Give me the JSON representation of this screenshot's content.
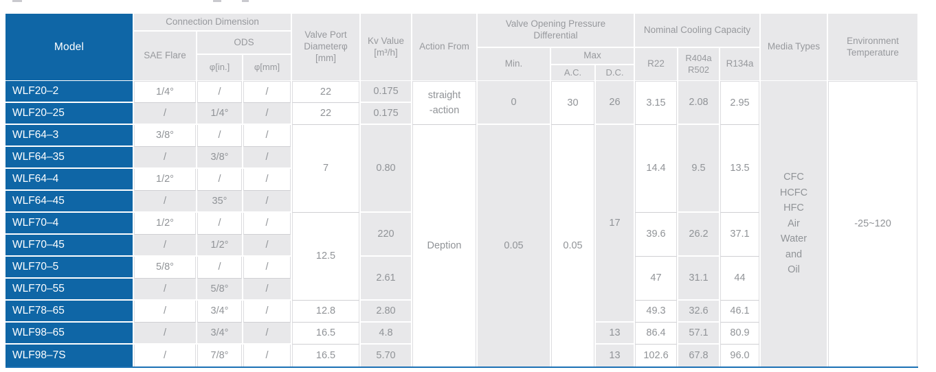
{
  "colors": {
    "model_blue": "#0f66a6",
    "cell_gray": "#e8e8ea",
    "header_text_gray": "#97999d",
    "body_text_gray": "#909397",
    "bottom_rule_blue": "#1a70b4"
  },
  "table": {
    "header": {
      "model": "Model",
      "connection_dimension": "Connection Dimension",
      "sae_flare": "SAE Flare",
      "ods": "ODS",
      "phi_in": "φ[in.]",
      "phi_mm": "φ[mm]",
      "valve_port": "Valve Port\nDiameterφ\n[mm]",
      "kv_value": "Kv Value\n[m³/h]",
      "action_from": "Action From",
      "pressure_differential": "Valve Opening Pressure\nDifferential",
      "min": "Min.",
      "max": "Max",
      "ac": "A.C.",
      "dc": "D.C.",
      "cooling_capacity": "Nominal Cooling Capacity",
      "r22": "R22",
      "r404a_r502": "R404a\nR502",
      "r134a": "R134a",
      "media_types": "Media Types",
      "environment_temperature": "Environment\nTemperature"
    },
    "models": [
      "WLF20–2",
      "WLF20–25",
      "WLF64–3",
      "WLF64–35",
      "WLF64–4",
      "WLF64–45",
      "WLF70–4",
      "WLF70–45",
      "WLF70–5",
      "WLF70–55",
      "WLF78–65",
      "WLF98–65",
      "WLF98–7S"
    ],
    "body_cells": [
      {
        "c": 2,
        "r": 1,
        "t": "1/4°",
        "s": "w"
      },
      {
        "c": 2,
        "r": 2,
        "t": "/",
        "s": "g"
      },
      {
        "c": 2,
        "r": 3,
        "t": "3/8°",
        "s": "w"
      },
      {
        "c": 2,
        "r": 4,
        "t": "/",
        "s": "g"
      },
      {
        "c": 2,
        "r": 5,
        "t": "1/2°",
        "s": "w"
      },
      {
        "c": 2,
        "r": 6,
        "t": "/",
        "s": "g"
      },
      {
        "c": 2,
        "r": 7,
        "t": "1/2°",
        "s": "w"
      },
      {
        "c": 2,
        "r": 8,
        "t": "/",
        "s": "g"
      },
      {
        "c": 2,
        "r": 9,
        "t": "5/8°",
        "s": "w"
      },
      {
        "c": 2,
        "r": 10,
        "t": "/",
        "s": "g"
      },
      {
        "c": 2,
        "r": 11,
        "t": "/",
        "s": "w"
      },
      {
        "c": 2,
        "r": 12,
        "t": "/",
        "s": "g"
      },
      {
        "c": 2,
        "r": 13,
        "t": "/",
        "s": "w"
      },
      {
        "c": 3,
        "r": 1,
        "t": "/",
        "s": "w"
      },
      {
        "c": 3,
        "r": 2,
        "t": "1/4°",
        "s": "g"
      },
      {
        "c": 3,
        "r": 3,
        "t": "/",
        "s": "w"
      },
      {
        "c": 3,
        "r": 4,
        "t": "3/8°",
        "s": "g"
      },
      {
        "c": 3,
        "r": 5,
        "t": "/",
        "s": "w"
      },
      {
        "c": 3,
        "r": 6,
        "t": "35°",
        "s": "g"
      },
      {
        "c": 3,
        "r": 7,
        "t": "/",
        "s": "w"
      },
      {
        "c": 3,
        "r": 8,
        "t": "1/2°",
        "s": "g"
      },
      {
        "c": 3,
        "r": 9,
        "t": "/",
        "s": "w"
      },
      {
        "c": 3,
        "r": 10,
        "t": "5/8°",
        "s": "g"
      },
      {
        "c": 3,
        "r": 11,
        "t": "3/4°",
        "s": "w"
      },
      {
        "c": 3,
        "r": 12,
        "t": "3/4°",
        "s": "g"
      },
      {
        "c": 3,
        "r": 13,
        "t": "7/8°",
        "s": "w"
      },
      {
        "c": 4,
        "r": 1,
        "t": "/",
        "s": "w"
      },
      {
        "c": 4,
        "r": 2,
        "t": "/",
        "s": "g"
      },
      {
        "c": 4,
        "r": 3,
        "t": "/",
        "s": "w"
      },
      {
        "c": 4,
        "r": 4,
        "t": "/",
        "s": "g"
      },
      {
        "c": 4,
        "r": 5,
        "t": "/",
        "s": "w"
      },
      {
        "c": 4,
        "r": 6,
        "t": "/",
        "s": "g"
      },
      {
        "c": 4,
        "r": 7,
        "t": "/",
        "s": "w"
      },
      {
        "c": 4,
        "r": 8,
        "t": "/",
        "s": "g"
      },
      {
        "c": 4,
        "r": 9,
        "t": "/",
        "s": "w"
      },
      {
        "c": 4,
        "r": 10,
        "t": "/",
        "s": "g"
      },
      {
        "c": 4,
        "r": 11,
        "t": "/",
        "s": "w"
      },
      {
        "c": 4,
        "r": 12,
        "t": "/",
        "s": "g"
      },
      {
        "c": 4,
        "r": 13,
        "t": "/",
        "s": "w"
      },
      {
        "c": 5,
        "r": 1,
        "t": "22",
        "s": "w"
      },
      {
        "c": 5,
        "r": 2,
        "t": "22",
        "s": "w"
      },
      {
        "c": 5,
        "r": 3,
        "rs": 4,
        "t": "7",
        "s": "w"
      },
      {
        "c": 5,
        "r": 7,
        "rs": 4,
        "t": "12.5",
        "s": "w"
      },
      {
        "c": 5,
        "r": 11,
        "t": "12.8",
        "s": "w"
      },
      {
        "c": 5,
        "r": 12,
        "t": "16.5",
        "s": "w"
      },
      {
        "c": 5,
        "r": 13,
        "t": "16.5",
        "s": "w"
      },
      {
        "c": 6,
        "r": 1,
        "t": "0.175",
        "s": "g"
      },
      {
        "c": 6,
        "r": 2,
        "t": "0.175",
        "s": "g"
      },
      {
        "c": 6,
        "r": 3,
        "rs": 4,
        "t": "0.80",
        "s": "g"
      },
      {
        "c": 6,
        "r": 7,
        "rs": 2,
        "t": "220",
        "s": "g"
      },
      {
        "c": 6,
        "r": 9,
        "rs": 2,
        "t": "2.61",
        "s": "g"
      },
      {
        "c": 6,
        "r": 11,
        "t": "2.80",
        "s": "g"
      },
      {
        "c": 6,
        "r": 12,
        "t": "4.8",
        "s": "g"
      },
      {
        "c": 6,
        "r": 13,
        "t": "5.70",
        "s": "g"
      },
      {
        "c": 7,
        "r": 1,
        "rs": 2,
        "t": "straight\n-action",
        "s": "w"
      },
      {
        "c": 7,
        "r": 3,
        "rs": 11,
        "t": "Deption",
        "s": "w"
      },
      {
        "c": 8,
        "r": 1,
        "rs": 2,
        "t": "0",
        "s": "g"
      },
      {
        "c": 8,
        "r": 3,
        "rs": 11,
        "t": "0.05",
        "s": "g"
      },
      {
        "c": 9,
        "r": 1,
        "rs": 2,
        "t": "30",
        "s": "w"
      },
      {
        "c": 9,
        "r": 3,
        "rs": 11,
        "t": "0.05",
        "s": "w"
      },
      {
        "c": 10,
        "r": 1,
        "rs": 2,
        "t": "26",
        "s": "g"
      },
      {
        "c": 10,
        "r": 3,
        "rs": 9,
        "t": "17",
        "s": "g"
      },
      {
        "c": 10,
        "r": 12,
        "t": "13",
        "s": "g"
      },
      {
        "c": 10,
        "r": 13,
        "t": "13",
        "s": "g"
      },
      {
        "c": 11,
        "r": 1,
        "rs": 2,
        "t": "3.15",
        "s": "w"
      },
      {
        "c": 11,
        "r": 3,
        "rs": 4,
        "t": "14.4",
        "s": "w"
      },
      {
        "c": 11,
        "r": 7,
        "rs": 2,
        "t": "39.6",
        "s": "w"
      },
      {
        "c": 11,
        "r": 9,
        "rs": 2,
        "t": "47",
        "s": "w"
      },
      {
        "c": 11,
        "r": 11,
        "t": "49.3",
        "s": "w"
      },
      {
        "c": 11,
        "r": 12,
        "t": "86.4",
        "s": "w"
      },
      {
        "c": 11,
        "r": 13,
        "t": "102.6",
        "s": "w"
      },
      {
        "c": 12,
        "r": 1,
        "rs": 2,
        "t": "2.08",
        "s": "g"
      },
      {
        "c": 12,
        "r": 3,
        "rs": 4,
        "t": "9.5",
        "s": "g"
      },
      {
        "c": 12,
        "r": 7,
        "rs": 2,
        "t": "26.2",
        "s": "g"
      },
      {
        "c": 12,
        "r": 9,
        "rs": 2,
        "t": "31.1",
        "s": "g"
      },
      {
        "c": 12,
        "r": 11,
        "t": "32.6",
        "s": "g"
      },
      {
        "c": 12,
        "r": 12,
        "t": "57.1",
        "s": "g"
      },
      {
        "c": 12,
        "r": 13,
        "t": "67.8",
        "s": "g"
      },
      {
        "c": 13,
        "r": 1,
        "rs": 2,
        "t": "2.95",
        "s": "w"
      },
      {
        "c": 13,
        "r": 3,
        "rs": 4,
        "t": "13.5",
        "s": "w"
      },
      {
        "c": 13,
        "r": 7,
        "rs": 2,
        "t": "37.1",
        "s": "w"
      },
      {
        "c": 13,
        "r": 9,
        "rs": 2,
        "t": "44",
        "s": "w"
      },
      {
        "c": 13,
        "r": 11,
        "t": "46.1",
        "s": "w"
      },
      {
        "c": 13,
        "r": 12,
        "t": "80.9",
        "s": "w"
      },
      {
        "c": 13,
        "r": 13,
        "t": "96.0",
        "s": "w"
      },
      {
        "c": 14,
        "r": 1,
        "rs": 13,
        "t": "CFC\nHCFC\nHFC\nAir\nWater\nand\nOil",
        "s": "g"
      },
      {
        "c": 15,
        "r": 1,
        "rs": 13,
        "t": "-25~120",
        "s": "w"
      }
    ]
  }
}
